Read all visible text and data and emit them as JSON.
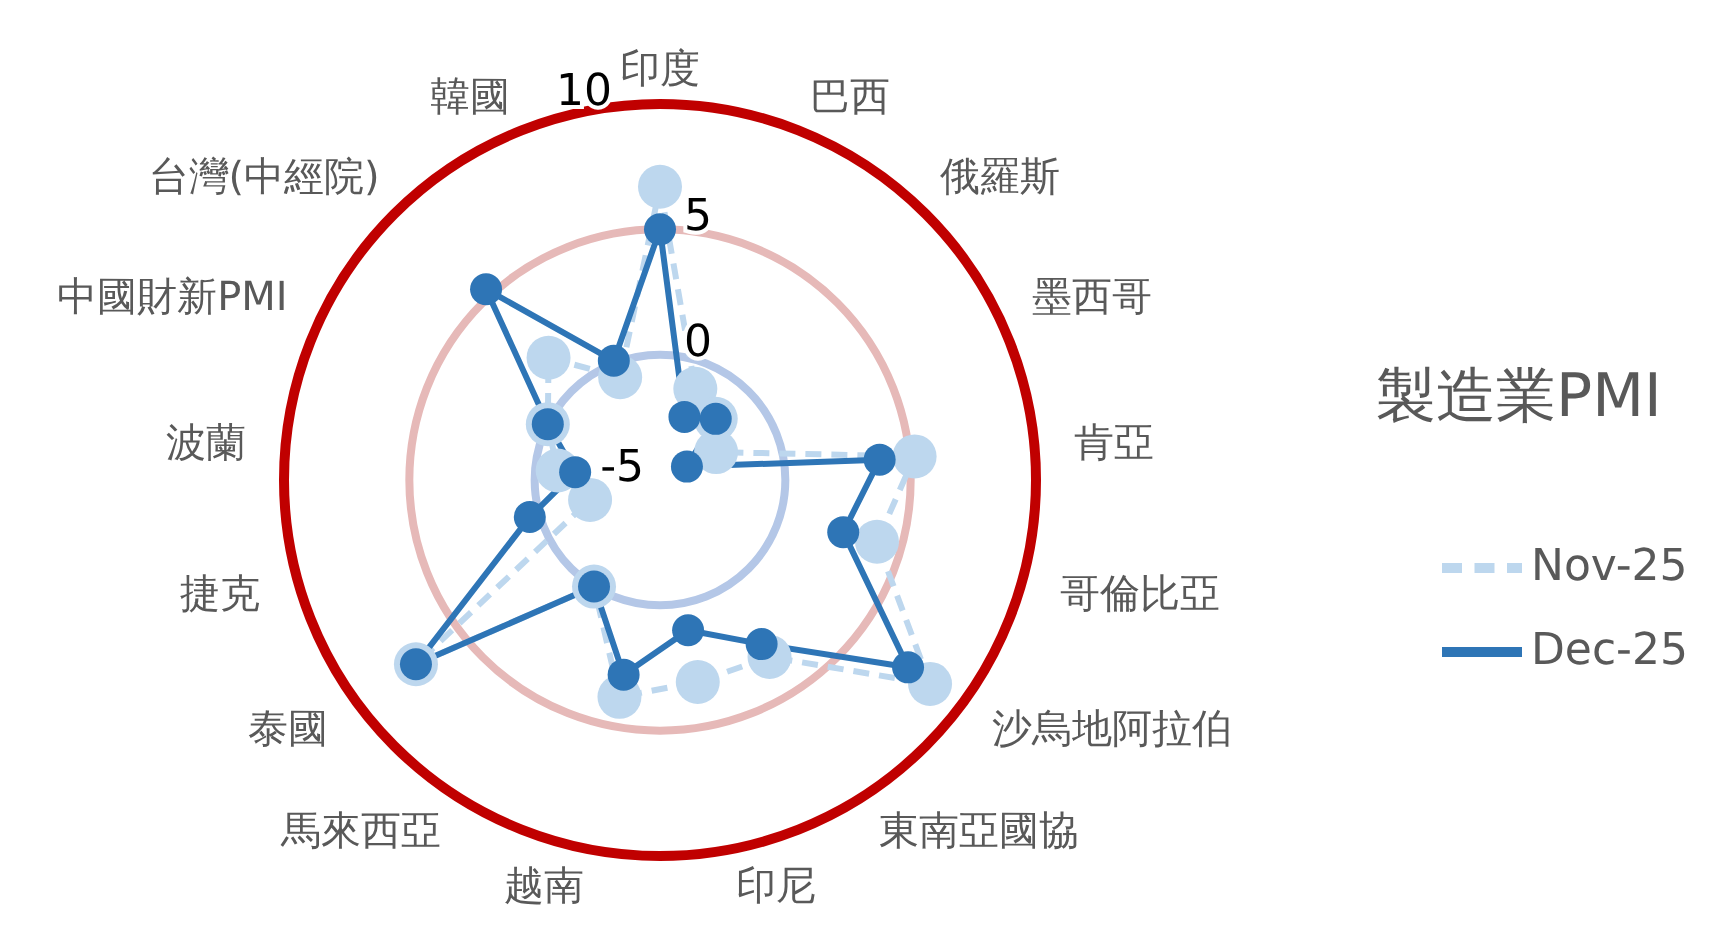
{
  "chart_data": {
    "type": "radar",
    "title": "製造業PMI",
    "categories": [
      "印度",
      "巴西",
      "俄羅斯",
      "墨西哥",
      "肯亞",
      "哥倫比亞",
      "沙烏地阿拉伯",
      "東南亞國協",
      "印尼",
      "越南",
      "馬來西亞",
      "泰國",
      "捷克",
      "波蘭",
      "中國財新PMI",
      "台灣(中經院)",
      "韓國"
    ],
    "series": [
      {
        "name": "Nov-25",
        "color": "#bdd7ee",
        "line_style": "dashed",
        "values": [
          6.7,
          -1.1,
          -1.7,
          -2.5,
          5.2,
          4.0,
          8.5,
          3.3,
          3.2,
          3.8,
          0.0,
          7.2,
          -2.1,
          -0.9,
          0.0,
          1.6,
          -0.6
        ]
      },
      {
        "name": "Dec-25",
        "color": "#2e75b6",
        "line_style": "solid",
        "values": [
          5.0,
          -2.3,
          -1.7,
          -3.8,
          3.8,
          2.6,
          7.4,
          2.7,
          1.1,
          2.9,
          0.0,
          7.2,
          0.4,
          -1.6,
          0.0,
          5.3,
          0.1
        ]
      }
    ],
    "ylim": [
      -5,
      10
    ],
    "yticks": [
      -5,
      0,
      5,
      10
    ],
    "grid": true,
    "legend": "right",
    "marker": "circle"
  }
}
